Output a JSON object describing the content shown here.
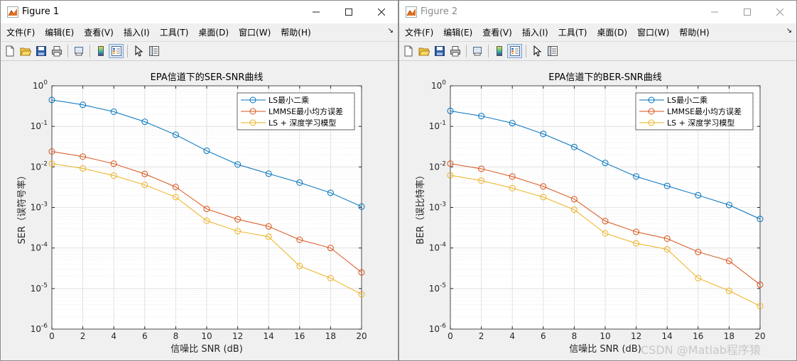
{
  "windows": [
    {
      "title": "Figure 1",
      "active": true,
      "menu": [
        "文件(F)",
        "编辑(E)",
        "查看(V)",
        "插入(I)",
        "工具(T)",
        "桌面(D)",
        "窗口(W)",
        "帮助(H)"
      ],
      "watermark": ""
    },
    {
      "title": "Figure 2",
      "active": false,
      "menu": [
        "文件(F)",
        "编辑(E)",
        "查看(V)",
        "插入(I)",
        "工具(T)",
        "桌面(D)",
        "窗口(W)",
        "帮助(H)"
      ],
      "watermark": "CSDN @Matlab程序猿"
    }
  ],
  "icons": {
    "app": "matlab-figure-icon",
    "window_buttons": [
      "minimize-icon",
      "maximize-icon",
      "close-icon"
    ],
    "toolbar": [
      "new-figure-icon",
      "open-file-icon",
      "save-icon",
      "print-icon",
      "print-preview-icon",
      "colorbar-icon",
      "legend-icon",
      "pointer-icon",
      "property-inspector-icon"
    ]
  },
  "colors": {
    "series": [
      "#0072BD",
      "#D95319",
      "#EDB120"
    ]
  },
  "chart_data": [
    {
      "type": "line",
      "title": "EPA信道下的SER-SNR曲线",
      "xlabel": "信噪比 SNR (dB)",
      "ylabel": "SER（误符号率）",
      "x": [
        0,
        2,
        4,
        6,
        8,
        10,
        12,
        14,
        16,
        18,
        20
      ],
      "xlim": [
        0,
        20
      ],
      "ylim": [
        1e-06,
        1
      ],
      "yscale": "log",
      "xticks": [
        "0",
        "2",
        "4",
        "6",
        "8",
        "10",
        "12",
        "14",
        "16",
        "18",
        "20"
      ],
      "yticks": [
        {
          "base": "10",
          "exp": "0"
        },
        {
          "base": "10",
          "exp": "-1"
        },
        {
          "base": "10",
          "exp": "-2"
        },
        {
          "base": "10",
          "exp": "-3"
        },
        {
          "base": "10",
          "exp": "-4"
        },
        {
          "base": "10",
          "exp": "-5"
        },
        {
          "base": "10",
          "exp": "-6"
        }
      ],
      "grid": true,
      "legend_position": "top-right",
      "series": [
        {
          "name": "LS最小二乘",
          "marker": "circle",
          "values": [
            0.45,
            0.34,
            0.23,
            0.13,
            0.062,
            0.025,
            0.0115,
            0.0068,
            0.0041,
            0.0023,
            0.00105
          ]
        },
        {
          "name": "LMMSE最小均方误差",
          "marker": "circle",
          "values": [
            0.024,
            0.018,
            0.012,
            0.0067,
            0.0032,
            0.00092,
            0.00051,
            0.00034,
            0.00016,
            0.0001,
            2.5e-05
          ]
        },
        {
          "name": "LS + 深度学习模型",
          "marker": "circle",
          "values": [
            0.012,
            0.0092,
            0.0061,
            0.0036,
            0.0018,
            0.00047,
            0.00026,
            0.00019,
            3.6e-05,
            1.8e-05,
            7.2e-06
          ]
        }
      ]
    },
    {
      "type": "line",
      "title": "EPA信道下的BER-SNR曲线",
      "xlabel": "信噪比 SNR (dB)",
      "ylabel": "BER（误比特率）",
      "x": [
        0,
        2,
        4,
        6,
        8,
        10,
        12,
        14,
        16,
        18,
        20
      ],
      "xlim": [
        0,
        20
      ],
      "ylim": [
        1e-06,
        1
      ],
      "yscale": "log",
      "xticks": [
        "0",
        "2",
        "4",
        "6",
        "8",
        "10",
        "12",
        "14",
        "16",
        "18",
        "20"
      ],
      "yticks": [
        {
          "base": "10",
          "exp": "0"
        },
        {
          "base": "10",
          "exp": "-1"
        },
        {
          "base": "10",
          "exp": "-2"
        },
        {
          "base": "10",
          "exp": "-3"
        },
        {
          "base": "10",
          "exp": "-4"
        },
        {
          "base": "10",
          "exp": "-5"
        },
        {
          "base": "10",
          "exp": "-6"
        }
      ],
      "grid": true,
      "legend_position": "top-right",
      "series": [
        {
          "name": "LS最小二乘",
          "marker": "circle",
          "values": [
            0.24,
            0.18,
            0.12,
            0.065,
            0.031,
            0.0125,
            0.0058,
            0.0034,
            0.002,
            0.00115,
            0.00052
          ]
        },
        {
          "name": "LMMSE最小均方误差",
          "marker": "circle",
          "values": [
            0.012,
            0.009,
            0.0058,
            0.0033,
            0.0016,
            0.00046,
            0.00025,
            0.00017,
            8e-05,
            4.8e-05,
            1.25e-05
          ]
        },
        {
          "name": "LS + 深度学习模型",
          "marker": "circle",
          "values": [
            0.0062,
            0.0046,
            0.003,
            0.0018,
            0.00088,
            0.00023,
            0.00013,
            9.3e-05,
            1.8e-05,
            8.8e-06,
            3.7e-06
          ]
        }
      ]
    }
  ]
}
